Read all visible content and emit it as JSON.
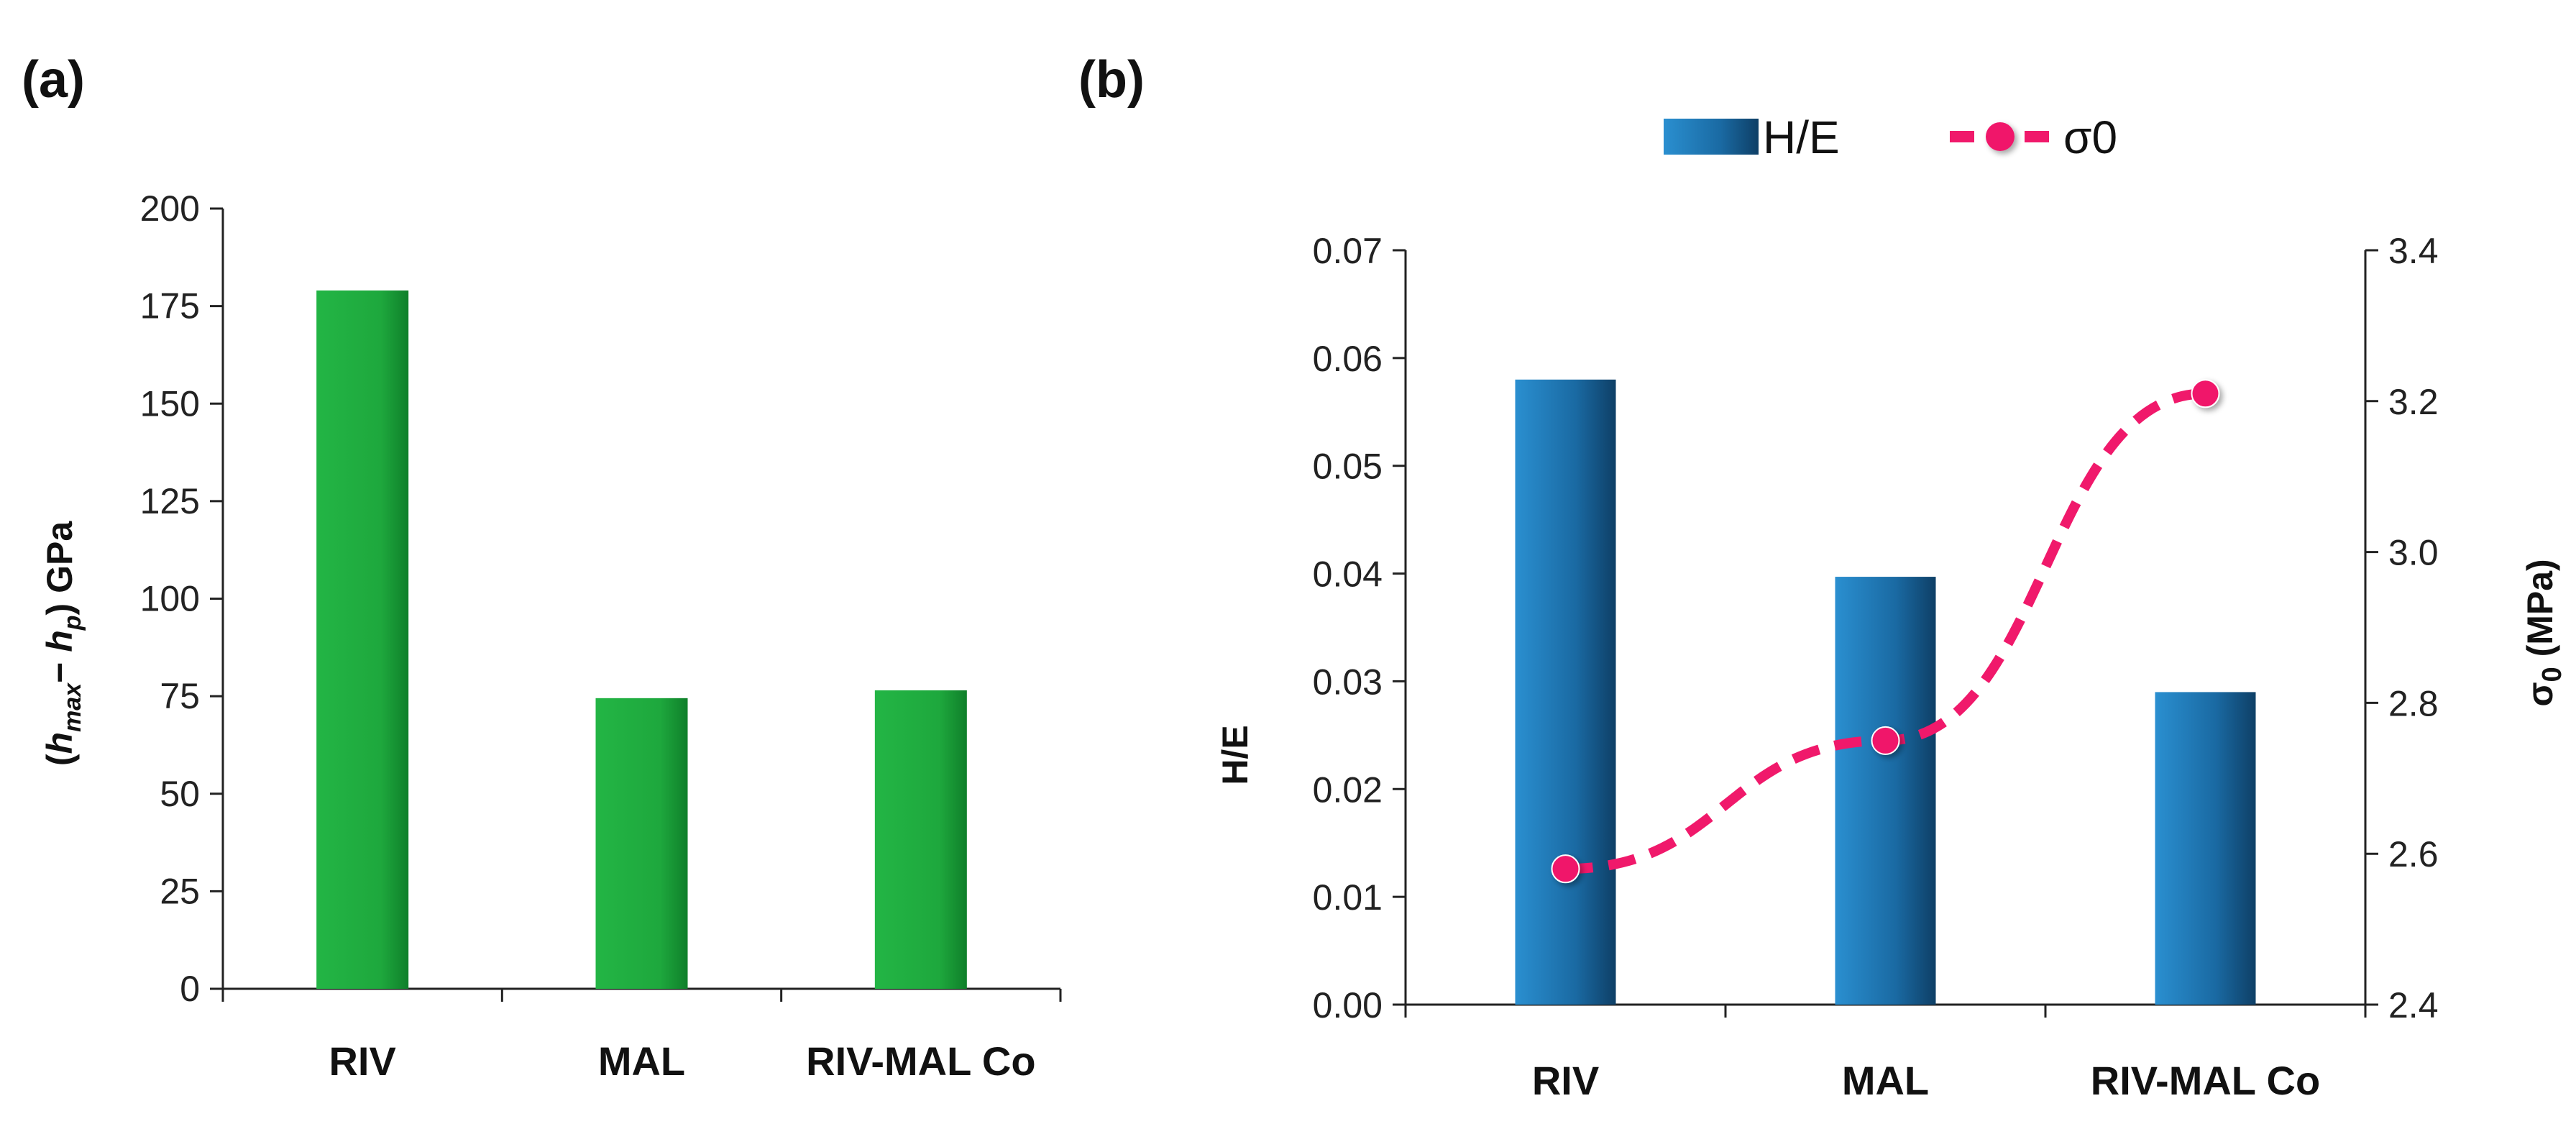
{
  "chart_data": [
    {
      "panel": "(a)",
      "type": "bar",
      "categories": [
        "RIV",
        "MAL",
        "RIV-MAL Co"
      ],
      "values": [
        179,
        74.5,
        76.5
      ],
      "ylabel_parts": [
        "(",
        "h",
        "max",
        "− ",
        "h",
        "p",
        ") GPa"
      ],
      "ylim": [
        0,
        200
      ],
      "yticks": [
        "0",
        "25",
        "50",
        "75",
        "100",
        "125",
        "150",
        "175",
        "200"
      ],
      "bar_color": "#1fae3f",
      "legend": null
    },
    {
      "panel": "(b)",
      "type": "bar+line",
      "categories": [
        "RIV",
        "MAL",
        "RIV-MAL Co"
      ],
      "series": [
        {
          "name": "H/E",
          "type": "bar",
          "axis": "left",
          "values": [
            0.058,
            0.0397,
            0.029
          ],
          "color": "#1a6aa3"
        },
        {
          "name": "σ0",
          "type": "line",
          "axis": "right",
          "values": [
            2.58,
            2.75,
            3.21
          ],
          "color": "#f0196b"
        }
      ],
      "ylabel_left": "H/E",
      "ylabel_right_main": "σ",
      "ylabel_right_sub": "0",
      "ylabel_right_unit": " (MPa)",
      "ylim_left": [
        0,
        0.07
      ],
      "yticks_left": [
        "0.00",
        "0.01",
        "0.02",
        "0.03",
        "0.04",
        "0.05",
        "0.06",
        "0.07"
      ],
      "ylim_right": [
        2.4,
        3.4
      ],
      "yticks_right": [
        "2.4",
        "2.6",
        "2.8",
        "3.0",
        "3.2",
        "3.4"
      ],
      "legend_position": "top-center"
    }
  ]
}
